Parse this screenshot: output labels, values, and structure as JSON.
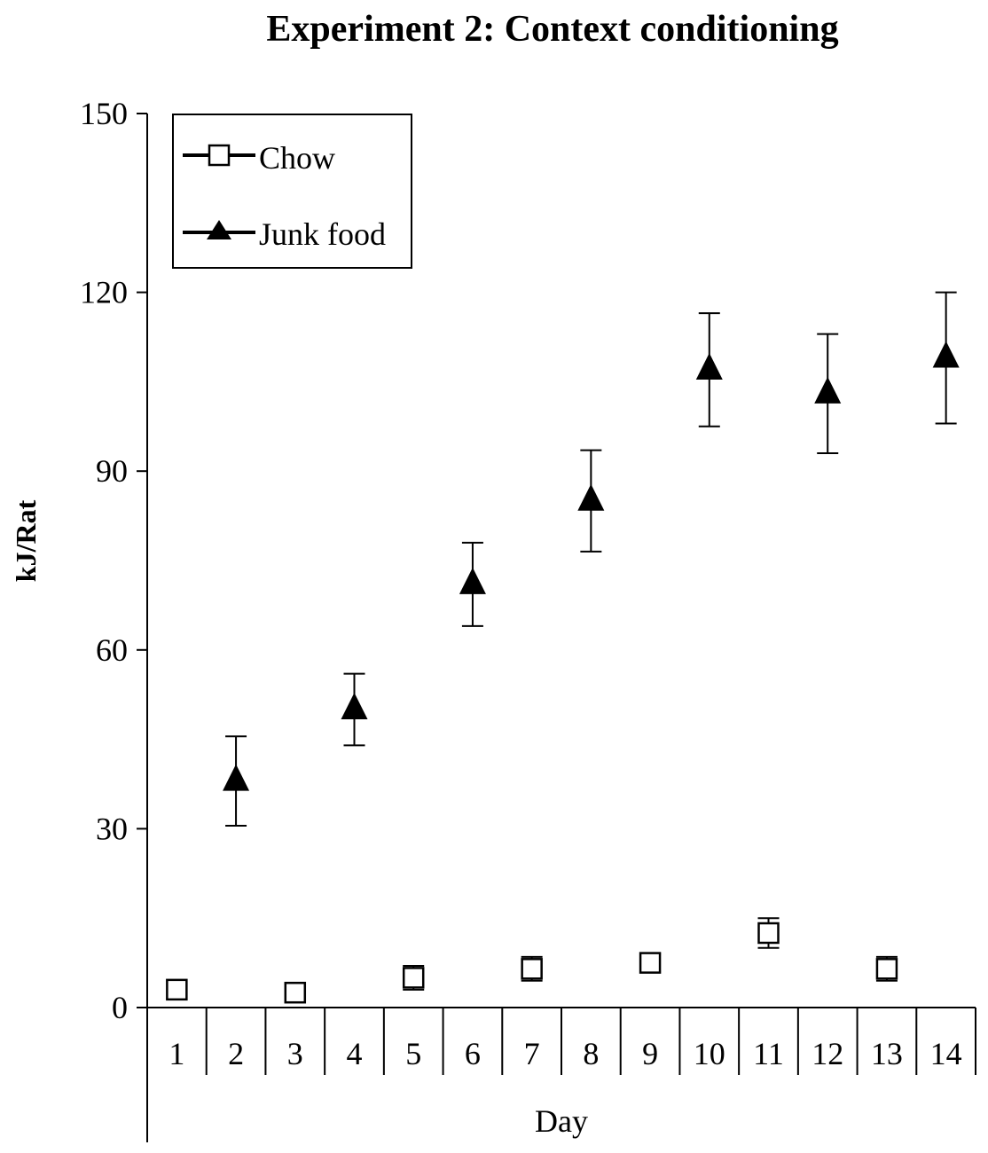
{
  "chart_data": {
    "type": "scatter",
    "title": "Experiment 2: Context conditioning",
    "xlabel": "Day",
    "ylabel": "kJ/Rat",
    "ylim": [
      0,
      150
    ],
    "yticks": [
      "0",
      "30",
      "60",
      "90",
      "120",
      "150"
    ],
    "categories": [
      "1",
      "2",
      "3",
      "4",
      "5",
      "6",
      "7",
      "8",
      "9",
      "10",
      "11",
      "12",
      "13",
      "14"
    ],
    "legend_position": "top-left",
    "series": [
      {
        "name": "Chow",
        "marker": "open-square",
        "points": [
          {
            "day": 1,
            "y": 3,
            "err": 1.5
          },
          {
            "day": 3,
            "y": 2.5,
            "err": 1.5
          },
          {
            "day": 5,
            "y": 5,
            "err": 2
          },
          {
            "day": 7,
            "y": 6.5,
            "err": 2
          },
          {
            "day": 9,
            "y": 7.5,
            "err": 1.5
          },
          {
            "day": 11,
            "y": 12.5,
            "err": 2.5
          },
          {
            "day": 13,
            "y": 6.5,
            "err": 2
          }
        ]
      },
      {
        "name": "Junk food",
        "marker": "filled-triangle",
        "points": [
          {
            "day": 2,
            "y": 38,
            "err": 7.5
          },
          {
            "day": 4,
            "y": 50,
            "err": 6
          },
          {
            "day": 6,
            "y": 71,
            "err": 7
          },
          {
            "day": 8,
            "y": 85,
            "err": 8.5
          },
          {
            "day": 10,
            "y": 107,
            "err": 9.5
          },
          {
            "day": 12,
            "y": 103,
            "err": 10
          },
          {
            "day": 14,
            "y": 109,
            "err": 11
          }
        ]
      }
    ]
  },
  "colors": {
    "ink": "#000000",
    "background": "#ffffff"
  }
}
